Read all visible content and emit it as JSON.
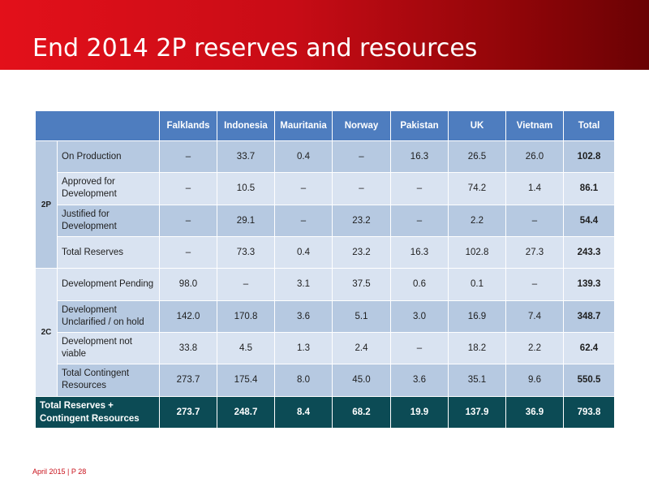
{
  "slide": {
    "title": "End 2014 2P reserves and resources",
    "footer": "April 2015 | P 28",
    "colors": {
      "banner_start": "#e3101a",
      "banner_end": "#6a0204",
      "header": "#4e7dbf",
      "total_row": "#0c4b55"
    }
  },
  "table": {
    "columns": [
      "Falklands",
      "Indonesia",
      "Mauritania",
      "Norway",
      "Pakistan",
      "UK",
      "Vietnam",
      "Total"
    ],
    "groups": [
      "2P",
      "2C"
    ],
    "rows": [
      {
        "label": "On Production",
        "values": [
          "–",
          "33.7",
          "0.4",
          "–",
          "16.3",
          "26.5",
          "26.0",
          "102.8"
        ]
      },
      {
        "label": "Approved for Development",
        "values": [
          "–",
          "10.5",
          "–",
          "–",
          "–",
          "74.2",
          "1.4",
          "86.1"
        ]
      },
      {
        "label": "Justified for Development",
        "values": [
          "–",
          "29.1",
          "–",
          "23.2",
          "–",
          "2.2",
          "–",
          "54.4"
        ]
      },
      {
        "label": "Total Reserves",
        "values": [
          "–",
          "73.3",
          "0.4",
          "23.2",
          "16.3",
          "102.8",
          "27.3",
          "243.3"
        ]
      },
      {
        "label": "Development Pending",
        "values": [
          "98.0",
          "–",
          "3.1",
          "37.5",
          "0.6",
          "0.1",
          "–",
          "139.3"
        ]
      },
      {
        "label": "Development Unclarified / on hold",
        "values": [
          "142.0",
          "170.8",
          "3.6",
          "5.1",
          "3.0",
          "16.9",
          "7.4",
          "348.7"
        ]
      },
      {
        "label": "Development not viable",
        "values": [
          "33.8",
          "4.5",
          "1.3",
          "2.4",
          "–",
          "18.2",
          "2.2",
          "62.4"
        ]
      },
      {
        "label": "Total Contingent Resources",
        "values": [
          "273.7",
          "175.4",
          "8.0",
          "45.0",
          "3.6",
          "35.1",
          "9.6",
          "550.5"
        ]
      }
    ],
    "grand_total": {
      "label": "Total Reserves + Contingent Resources",
      "values": [
        "273.7",
        "248.7",
        "8.4",
        "68.2",
        "19.9",
        "137.9",
        "36.9",
        "793.8"
      ]
    }
  }
}
